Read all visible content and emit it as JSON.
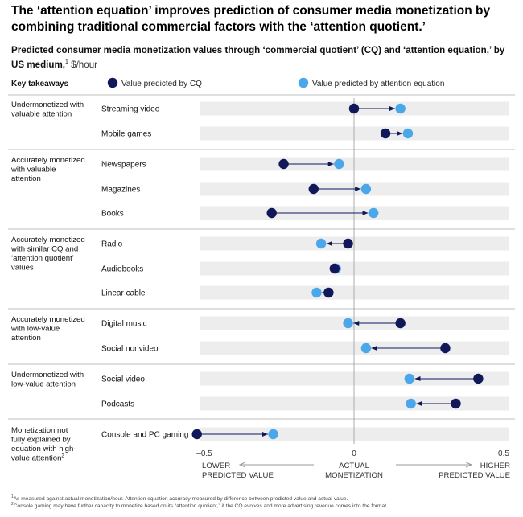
{
  "title": "The ‘attention equation’ improves prediction of consumer media monetization by combining traditional commercial factors with the ‘attention quotient.’",
  "subtitle": "Predicted consumer media monetization values through ‘commercial quotient’ (CQ) and ‘attention equation,’ by US medium,",
  "subtitle_sup": "1",
  "subtitle_unit": "$/hour",
  "colors": {
    "cq": "#10185a",
    "attention": "#4aa7ea",
    "band": "#ededed",
    "axis": "#999999",
    "divider": "#aaaaaa"
  },
  "chart_data": {
    "type": "dumbbell",
    "key_takeaways_label": "Key takeaways",
    "legend": [
      "Value predicted by CQ",
      "Value predicted by attention equation"
    ],
    "series": [
      {
        "name": "Value predicted by CQ",
        "values": [
          0.0,
          0.105,
          -0.235,
          -0.135,
          -0.275,
          -0.02,
          -0.065,
          -0.085,
          0.155,
          0.305,
          0.415,
          0.34,
          -0.525
        ]
      },
      {
        "name": "Value predicted by attention equation",
        "values": [
          0.155,
          0.18,
          -0.05,
          0.04,
          0.065,
          -0.11,
          -0.06,
          -0.125,
          -0.02,
          0.04,
          0.185,
          0.19,
          -0.27
        ]
      }
    ],
    "categories": [
      "Streaming video",
      "Mobile games",
      "Newspapers",
      "Magazines",
      "Books",
      "Radio",
      "Audiobooks",
      "Linear cable",
      "Digital music",
      "Social nonvideo",
      "Social video",
      "Podcasts",
      "Console and PC gaming"
    ],
    "groups": [
      {
        "label_lines": [
          "Undermonetized with",
          "valuable attention"
        ],
        "count": 2
      },
      {
        "label_lines": [
          "Accurately monetized",
          "with valuable",
          "attention"
        ],
        "count": 3
      },
      {
        "label_lines": [
          "Accurately monetized",
          "with similar CQ and",
          "‘attention quotient’",
          "values"
        ],
        "count": 3
      },
      {
        "label_lines": [
          "Accurately monetized",
          "with low-value",
          "attention"
        ],
        "count": 2
      },
      {
        "label_lines": [
          "Undermonetized with",
          "low-value attention"
        ],
        "count": 2
      },
      {
        "label_lines": [
          "Monetization not",
          "fully explained by",
          "equation with high-",
          "value attention"
        ],
        "label_sup": "2",
        "count": 1
      }
    ],
    "xlim": [
      -0.5,
      0.5
    ],
    "xticks": [
      "–0.5",
      "0",
      "0.5"
    ],
    "axis_labels": {
      "left": [
        "LOWER",
        "PREDICTED VALUE"
      ],
      "center": [
        "ACTUAL",
        "MONETIZATION"
      ],
      "right": [
        "HIGHER",
        "PREDICTED VALUE"
      ]
    }
  },
  "footnotes": [
    {
      "mark": "1",
      "text": "As measured against actual monetization/hour. Attention equation accuracy measured by difference between predicted value and actual value."
    },
    {
      "mark": "2",
      "text": "Console gaming may have further capacity to monetize based on its “attention quotient,” if the CQ evolves and more advertising revenue comes into the format."
    }
  ]
}
